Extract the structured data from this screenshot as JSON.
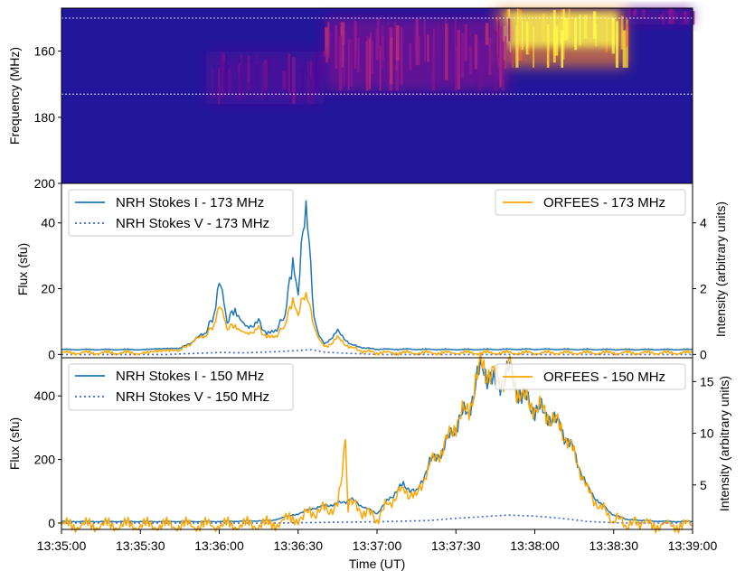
{
  "chart_data": [
    {
      "type": "heatmap",
      "ylabel": "Frequency (MHz)",
      "ylim": [
        200,
        147
      ],
      "yticks": [
        160,
        180,
        200
      ],
      "xlim_seconds": [
        0,
        240
      ],
      "reference_lines_mhz": [
        150,
        173
      ],
      "colormap": [
        "#10087a",
        "#4a0a9a",
        "#a21c8c",
        "#e85a3a",
        "#fbd62a",
        "#ffff50"
      ],
      "background_color": "#22169a",
      "burst_regions": [
        {
          "t0": 165,
          "t1": 215,
          "f_top": 147,
          "f_bottom": 165,
          "intensity": 0.95
        },
        {
          "t0": 100,
          "t1": 170,
          "f_top": 150,
          "f_bottom": 172,
          "intensity": 0.45
        },
        {
          "t0": 55,
          "t1": 100,
          "f_top": 160,
          "f_bottom": 176,
          "intensity": 0.3
        },
        {
          "t0": 215,
          "t1": 240,
          "f_top": 147,
          "f_bottom": 152,
          "intensity": 0.35
        }
      ]
    },
    {
      "type": "line",
      "ylabel": "Flux (sfu)",
      "ylabel_right": "Intensity (arbitrary units)",
      "ylim": [
        -1,
        52
      ],
      "ylim_right": [
        -0.1,
        5.2
      ],
      "yticks": [
        0,
        20,
        40
      ],
      "yticks_right": [
        0,
        2,
        4
      ],
      "legend_left": [
        "NRH Stokes I - 173 MHz",
        "NRH Stokes V - 173 MHz"
      ],
      "legend_right": [
        "ORFEES - 173 MHz"
      ],
      "series": [
        {
          "name": "NRH Stokes I - 173 MHz",
          "color": "#1f77b4",
          "style": "solid",
          "x": [
            0,
            30,
            45,
            50,
            55,
            58,
            60,
            63,
            66,
            70,
            75,
            78,
            82,
            85,
            88,
            90,
            93,
            96,
            98,
            100,
            105,
            110,
            115,
            120,
            130,
            150,
            180,
            210,
            240
          ],
          "y": [
            1.5,
            1.5,
            1.8,
            4,
            7,
            12,
            24,
            10,
            14,
            8,
            10,
            6,
            8,
            12,
            29,
            20,
            47,
            12,
            6,
            3,
            7,
            3,
            2,
            1.6,
            1.6,
            1.5,
            1.6,
            1.5,
            1.5
          ]
        },
        {
          "name": "NRH Stokes V - 173 MHz",
          "color": "#3b6ad6",
          "style": "dotted",
          "x": [
            0,
            40,
            50,
            60,
            70,
            80,
            90,
            95,
            100,
            110,
            120,
            240
          ],
          "y": [
            0,
            0,
            0.3,
            0.6,
            0.5,
            0.8,
            1.2,
            1.5,
            0.7,
            0.3,
            0,
            0
          ]
        },
        {
          "name": "ORFEES - 173 MHz",
          "color": "#ffa500",
          "style": "solid",
          "x": [
            0,
            30,
            45,
            50,
            55,
            58,
            60,
            63,
            66,
            70,
            75,
            78,
            82,
            85,
            88,
            90,
            93,
            96,
            98,
            100,
            105,
            110,
            115,
            120,
            130,
            150,
            180,
            210,
            240
          ],
          "y": [
            0.05,
            0.05,
            0.1,
            0.4,
            0.6,
            0.9,
            1.6,
            0.8,
            0.9,
            0.6,
            0.8,
            0.5,
            0.6,
            0.9,
            1.7,
            1.3,
            1.9,
            0.9,
            0.5,
            0.2,
            0.5,
            0.2,
            0.1,
            0.05,
            0.05,
            0.05,
            0.05,
            0.05,
            0.05
          ]
        }
      ]
    },
    {
      "type": "line",
      "xlabel": "Time (UT)",
      "ylabel": "Flux (sfu)",
      "ylabel_right": "Intensity (arbitrary units)",
      "ylim": [
        -20,
        520
      ],
      "ylim_right": [
        0.7,
        17.3
      ],
      "yticks": [
        0,
        200,
        400
      ],
      "yticks_right": [
        5,
        10,
        15
      ],
      "xticks": [
        "13:35:00",
        "13:35:30",
        "13:36:00",
        "13:36:30",
        "13:37:00",
        "13:37:30",
        "13:38:00",
        "13:38:30",
        "13:39:00"
      ],
      "legend_left": [
        "NRH Stokes I - 150 MHz",
        "NRH Stokes V - 150 MHz"
      ],
      "legend_right": [
        "ORFEES - 150 MHz"
      ],
      "series": [
        {
          "name": "NRH Stokes I - 150 MHz",
          "color": "#1f77b4",
          "style": "solid",
          "x": [
            0,
            60,
            80,
            90,
            95,
            100,
            105,
            110,
            115,
            120,
            125,
            130,
            135,
            140,
            145,
            150,
            155,
            160,
            165,
            170,
            175,
            180,
            185,
            190,
            195,
            200,
            205,
            210,
            215,
            220,
            230,
            240
          ],
          "y": [
            5,
            5,
            8,
            30,
            45,
            55,
            60,
            75,
            50,
            30,
            80,
            120,
            95,
            190,
            230,
            310,
            360,
            500,
            430,
            480,
            400,
            360,
            340,
            300,
            220,
            110,
            60,
            25,
            12,
            8,
            5,
            5
          ]
        },
        {
          "name": "NRH Stokes V - 150 MHz",
          "color": "#3b6ad6",
          "style": "dotted",
          "x": [
            0,
            80,
            100,
            120,
            140,
            150,
            160,
            170,
            180,
            190,
            200,
            210,
            220,
            240
          ],
          "y": [
            0,
            0,
            2,
            4,
            8,
            15,
            20,
            25,
            22,
            15,
            5,
            1,
            0,
            0
          ]
        },
        {
          "name": "ORFEES - 150 MHz",
          "color": "#ffa500",
          "style": "solid",
          "x": [
            0,
            60,
            80,
            90,
            95,
            100,
            105,
            108,
            109,
            110,
            115,
            120,
            125,
            130,
            135,
            140,
            145,
            150,
            155,
            160,
            165,
            170,
            175,
            180,
            185,
            190,
            195,
            200,
            205,
            210,
            215,
            220,
            230,
            240
          ],
          "y": [
            1.1,
            1.1,
            1.2,
            1.9,
            2.3,
            2.6,
            2.8,
            9.2,
            2.9,
            3.2,
            2.4,
            1.8,
            3.4,
            4.6,
            3.8,
            7,
            8.5,
            11,
            12.5,
            16.8,
            15,
            16.2,
            13.5,
            12.5,
            11.8,
            10.5,
            8,
            4.5,
            2.8,
            1.7,
            1.3,
            1.2,
            1.1,
            1.1
          ]
        }
      ]
    }
  ]
}
